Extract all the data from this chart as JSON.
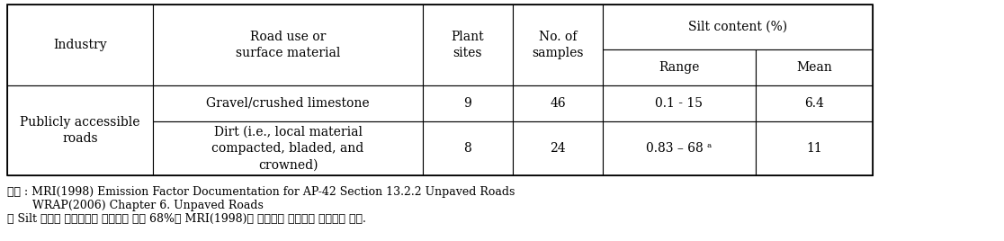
{
  "headers": {
    "col1": "Industry",
    "col2": "Road use or\nsurface material",
    "col3": "Plant\nsites",
    "col4": "No. of\nsamples",
    "col5_span": "Silt content (%)",
    "col5a": "Range",
    "col5b": "Mean"
  },
  "row1_industry": "Publicly accessible\nroads",
  "row1_road": "Gravel/crushed limestone",
  "row1_plants": "9",
  "row1_samples": "46",
  "row1_range": "0.1 - 15",
  "row1_mean": "6.4",
  "row2_road": "Dirt (i.e., local material\ncompacted, bladed, and\ncrowned)",
  "row2_plants": "8",
  "row2_samples": "24",
  "row2_range": "0.83 – 68 ᵃ",
  "row2_mean": "11",
  "footnote1": "출처 : MRI(1998) Emission Factor Documentation for AP-42 Section 13.2.2 Unpaved Roads",
  "footnote2": "       WRAP(2006) Chapter 6. Unpaved Roads",
  "footnote3": "※ Silt 함량의 최대값으로 제시되어 있는 68%는 MRI(1998)의 참고문헌 자료에서 확인되지 않음.",
  "bg_color": "#ffffff",
  "border_color": "#000000",
  "font_size": 10,
  "footnote_font_size": 9,
  "fig_width": 11.16,
  "fig_height": 2.68,
  "dpi": 100
}
